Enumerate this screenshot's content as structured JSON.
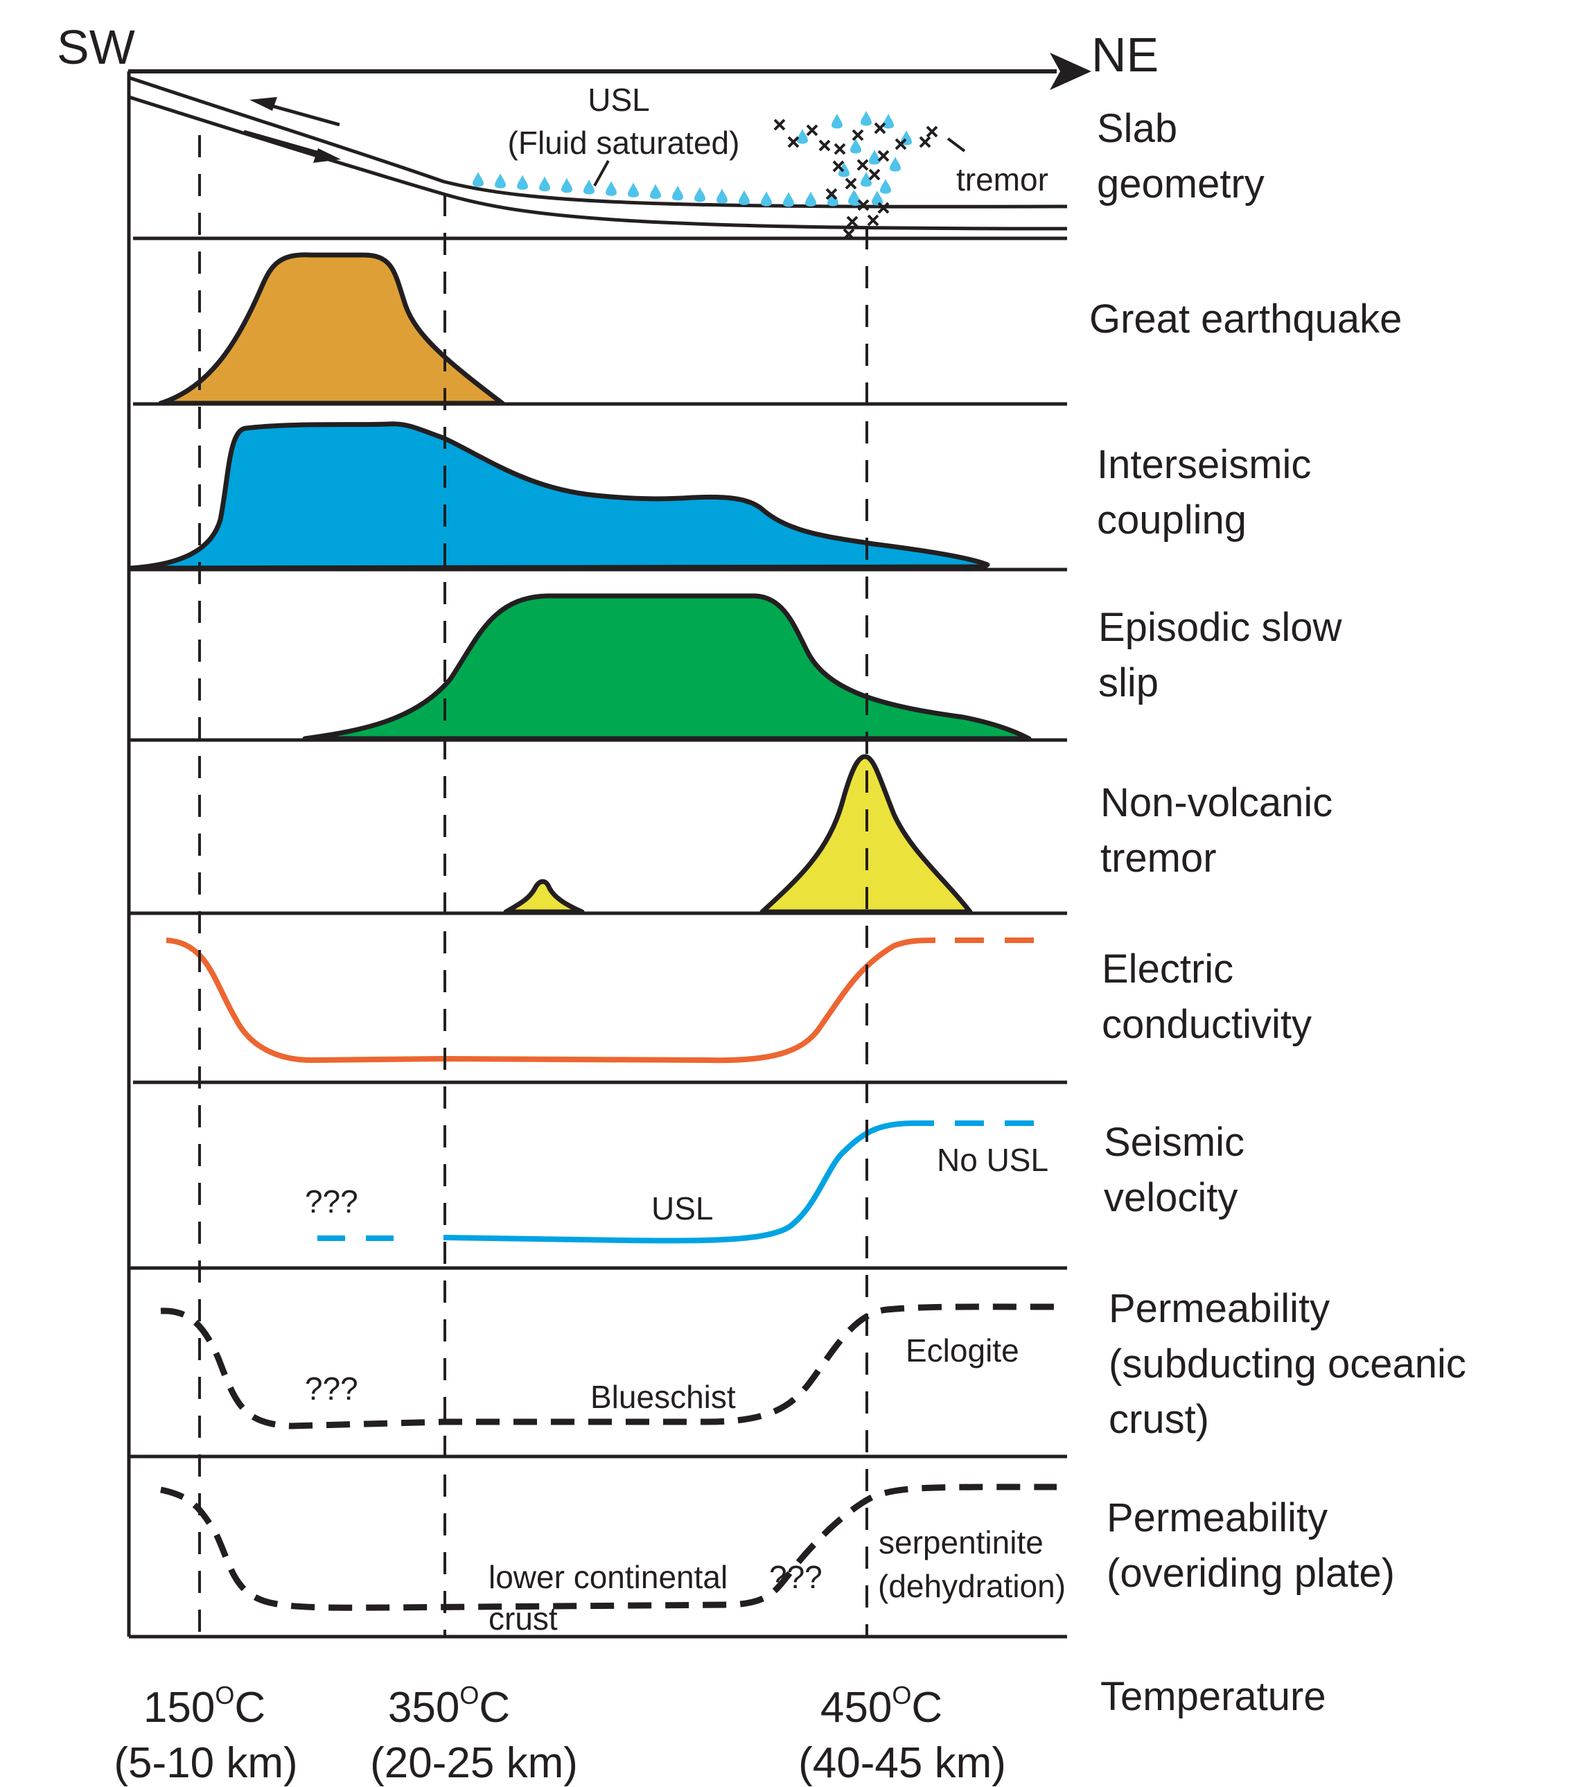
{
  "direction": {
    "left": "SW",
    "right": "NE"
  },
  "rows": [
    {
      "id": "slab",
      "label_lines": [
        "Slab",
        "geometry"
      ]
    },
    {
      "id": "great-earthquake",
      "label_lines": [
        "Great earthquake"
      ]
    },
    {
      "id": "interseismic-coupling",
      "label_lines": [
        "Interseismic",
        "coupling"
      ]
    },
    {
      "id": "episodic-slow-slip",
      "label_lines": [
        "Episodic slow",
        "slip"
      ]
    },
    {
      "id": "non-volcanic-tremor",
      "label_lines": [
        "Non-volcanic",
        "tremor"
      ]
    },
    {
      "id": "electric-conductivity",
      "label_lines": [
        "Electric",
        "conductivity"
      ]
    },
    {
      "id": "seismic-velocity",
      "label_lines": [
        "Seismic",
        "velocity"
      ]
    },
    {
      "id": "permeability-oceanic",
      "label_lines": [
        "Permeability",
        "(subducting oceanic",
        "crust)"
      ]
    },
    {
      "id": "permeability-overriding",
      "label_lines": [
        "Permeability",
        "(overiding plate)"
      ]
    },
    {
      "id": "temperature",
      "label_lines": [
        "Temperature"
      ]
    }
  ],
  "annotations": {
    "usl": "USL",
    "fluid_saturated": "(Fluid saturated)",
    "tremor": "tremor",
    "question_marks": "???",
    "no_usl": "No USL",
    "eclogite": "Eclogite",
    "blueschist": "Blueschist",
    "lower_continental": "lower continental",
    "crust": "crust",
    "serpentinite": "serpentinite",
    "dehydration": "(dehydration)"
  },
  "temperatures": [
    {
      "value": "150",
      "sup": "O",
      "unit": "C",
      "depth": "(5-10 km)"
    },
    {
      "value": "350",
      "sup": "O",
      "unit": "C",
      "depth": "(20-25 km)"
    },
    {
      "value": "450",
      "sup": "O",
      "unit": "C",
      "depth": "(40-45 km)"
    }
  ],
  "colors": {
    "ink": "#231f20",
    "great_earthquake": "#dea036",
    "interseismic_coupling": "#00a3dc",
    "slow_slip": "#00a94f",
    "tremor": "#ebe23c",
    "conductivity": "#ec6631",
    "seismic_velocity": "#00a3e3",
    "fluid_drops": "#4fc3ea"
  }
}
